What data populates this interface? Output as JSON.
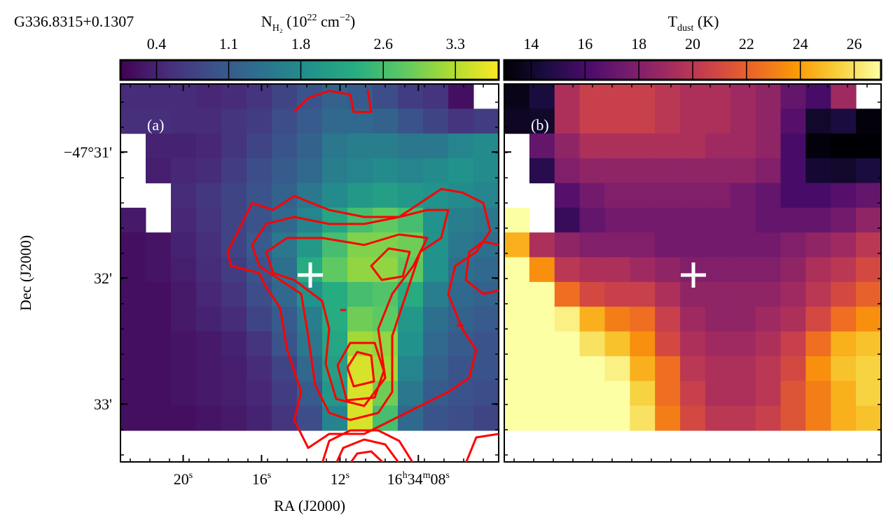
{
  "title": "G336.8315+0.1307",
  "chart_data": [
    {
      "type": "heatmap",
      "panel_label": "(a)",
      "colorbar_label": [
        "N",
        "H₂",
        " (10",
        "22",
        " cm",
        "−2",
        ")"
      ],
      "colorbar_lim": [
        0.05,
        3.72
      ],
      "colorbar_ticks": [
        0.4,
        1.1,
        1.8,
        2.6,
        3.3
      ],
      "colormap": [
        "#440154",
        "#472d7b",
        "#3b528b",
        "#2c728e",
        "#21918c",
        "#28ae80",
        "#5ec962",
        "#addc30",
        "#fde725"
      ],
      "contour_color": "#ff0000",
      "x_label": "RA (J2000)",
      "y_label": "Dec (J2000)",
      "xlim": [
        23.2,
        3.9
      ],
      "xticks": [
        {
          "value": 20,
          "label": [
            "20",
            "s"
          ]
        },
        {
          "value": 16,
          "label": [
            "16",
            "s"
          ]
        },
        {
          "value": 12,
          "label": [
            "12",
            "s"
          ]
        },
        {
          "value": 8,
          "label": [
            "16",
            "h",
            "34",
            "m",
            "08",
            "s"
          ]
        }
      ],
      "ylim": [
        33.46,
        30.46
      ],
      "yticks": [
        {
          "value": 31,
          "label": "−47°31'"
        },
        {
          "value": 32,
          "label": "32'"
        },
        {
          "value": 33,
          "label": "33'"
        }
      ],
      "values": [
        [
          0.5,
          0.5,
          0.5,
          0.45,
          0.5,
          0.6,
          0.8,
          1.0,
          1.2,
          1.1,
          0.9,
          0.7,
          0.6,
          0.2,
          null
        ],
        [
          0.55,
          0.55,
          0.5,
          0.5,
          0.6,
          0.7,
          0.9,
          1.1,
          1.3,
          1.3,
          1.2,
          1.0,
          0.8,
          0.6,
          0.7
        ],
        [
          null,
          0.4,
          0.4,
          0.45,
          0.6,
          0.8,
          1.0,
          1.2,
          1.5,
          1.6,
          1.6,
          1.5,
          1.5,
          1.7,
          1.8
        ],
        [
          null,
          0.35,
          0.45,
          0.5,
          0.7,
          0.9,
          1.1,
          1.3,
          1.6,
          1.7,
          1.8,
          1.7,
          1.8,
          1.9,
          1.8
        ],
        [
          null,
          null,
          0.5,
          0.65,
          0.8,
          1.0,
          1.2,
          1.5,
          1.8,
          2.0,
          2.1,
          2.0,
          1.9,
          1.8,
          1.7
        ],
        [
          0.3,
          null,
          0.45,
          0.6,
          0.8,
          1.0,
          1.3,
          1.7,
          2.2,
          2.6,
          2.8,
          2.6,
          1.9,
          1.6,
          1.5
        ],
        [
          0.2,
          0.25,
          0.4,
          0.55,
          0.8,
          1.1,
          1.5,
          2.0,
          2.6,
          3.0,
          3.0,
          2.9,
          1.9,
          1.5,
          1.4
        ],
        [
          0.2,
          0.25,
          0.35,
          0.5,
          0.7,
          1.0,
          1.4,
          2.3,
          2.8,
          3.1,
          3.1,
          2.8,
          1.9,
          1.4,
          1.3
        ],
        [
          0.2,
          0.2,
          0.3,
          0.45,
          0.6,
          0.9,
          1.3,
          1.9,
          2.3,
          2.6,
          2.7,
          2.3,
          1.6,
          1.3,
          1.2
        ],
        [
          0.2,
          0.2,
          0.3,
          0.4,
          0.5,
          0.8,
          1.1,
          1.6,
          2.3,
          2.9,
          2.8,
          2.0,
          1.4,
          1.2,
          1.1
        ],
        [
          0.2,
          0.2,
          0.25,
          0.3,
          0.4,
          0.6,
          1.0,
          1.5,
          2.2,
          3.2,
          3.1,
          1.9,
          1.3,
          1.1,
          1.0
        ],
        [
          0.2,
          0.2,
          0.25,
          0.3,
          0.35,
          0.5,
          0.8,
          1.3,
          2.1,
          3.5,
          3.2,
          1.7,
          1.2,
          1.0,
          1.0
        ],
        [
          0.2,
          0.2,
          0.25,
          0.3,
          0.35,
          0.45,
          0.7,
          1.1,
          2.0,
          3.5,
          2.9,
          1.5,
          1.1,
          1.0,
          0.9
        ],
        [
          0.2,
          0.2,
          0.2,
          0.25,
          0.3,
          0.4,
          0.6,
          0.9,
          1.7,
          3.5,
          2.6,
          1.3,
          1.0,
          0.9,
          0.8
        ]
      ]
    },
    {
      "type": "heatmap",
      "panel_label": "(b)",
      "colorbar_label": [
        "T",
        "dust",
        " (K)"
      ],
      "colorbar_lim": [
        13,
        27
      ],
      "colorbar_ticks": [
        14,
        16,
        18,
        20,
        22,
        24,
        26
      ],
      "colormap": [
        "#000004",
        "#1b0c41",
        "#4a0c6b",
        "#781c6d",
        "#a52c60",
        "#cf4446",
        "#ed6925",
        "#fb9b06",
        "#f7d13d",
        "#fcffa4"
      ],
      "values": [
        [
          13.5,
          14.5,
          19.5,
          20.5,
          20.5,
          20.5,
          20,
          19.5,
          19.5,
          19,
          18.5,
          17,
          16,
          19,
          null
        ],
        [
          13.8,
          14,
          19.5,
          20.5,
          20.5,
          20.5,
          20,
          19.5,
          19.5,
          19,
          18.5,
          16.5,
          14,
          14.5,
          13.2
        ],
        [
          null,
          17,
          18.5,
          19.5,
          19.5,
          19.5,
          19.5,
          19.5,
          19,
          19,
          18.5,
          16,
          13.2,
          13,
          13
        ],
        [
          null,
          15,
          18,
          18.5,
          18.5,
          18.5,
          18.5,
          18.5,
          18.5,
          18.5,
          18,
          16,
          14.2,
          14,
          14.5
        ],
        [
          null,
          null,
          16.5,
          17.5,
          18,
          18,
          18,
          18,
          18,
          17.5,
          17,
          16,
          16,
          16.5,
          17
        ],
        [
          27,
          null,
          15.5,
          17,
          17.5,
          17.5,
          17.5,
          17.5,
          17.5,
          17.5,
          17,
          17,
          17,
          17.5,
          18.5
        ],
        [
          24.5,
          19.5,
          18.5,
          18,
          18,
          18,
          17.5,
          17.5,
          17.5,
          17.5,
          17.5,
          18,
          18.5,
          19,
          20
        ],
        [
          27,
          23.5,
          20,
          19.5,
          19.5,
          19,
          18.5,
          18,
          18,
          18,
          18,
          18.5,
          19.5,
          20,
          21
        ],
        [
          27,
          27,
          22.5,
          21,
          20.5,
          20.5,
          19.5,
          18.5,
          18.5,
          18.5,
          18.5,
          19,
          20,
          21,
          22
        ],
        [
          27,
          27,
          26.5,
          24.5,
          23,
          22.5,
          20.5,
          19,
          18.5,
          18.5,
          19,
          19.5,
          21,
          22.5,
          23.5
        ],
        [
          27,
          27,
          27,
          26,
          25,
          23.5,
          21,
          19.5,
          19,
          19,
          19.5,
          20.5,
          22.5,
          24.5,
          25
        ],
        [
          27,
          27,
          27,
          27,
          26.5,
          24.5,
          22.5,
          20,
          19.5,
          19.5,
          20,
          21,
          23.5,
          25,
          25.5
        ],
        [
          27,
          27,
          27,
          27,
          27,
          25.5,
          22.5,
          20.5,
          19.5,
          19.5,
          20,
          21.5,
          23,
          24.5,
          25.5
        ],
        [
          27,
          27,
          27,
          27,
          27,
          26,
          23,
          21,
          20,
          20,
          20.5,
          21.5,
          23,
          24.5,
          25
        ]
      ]
    }
  ]
}
